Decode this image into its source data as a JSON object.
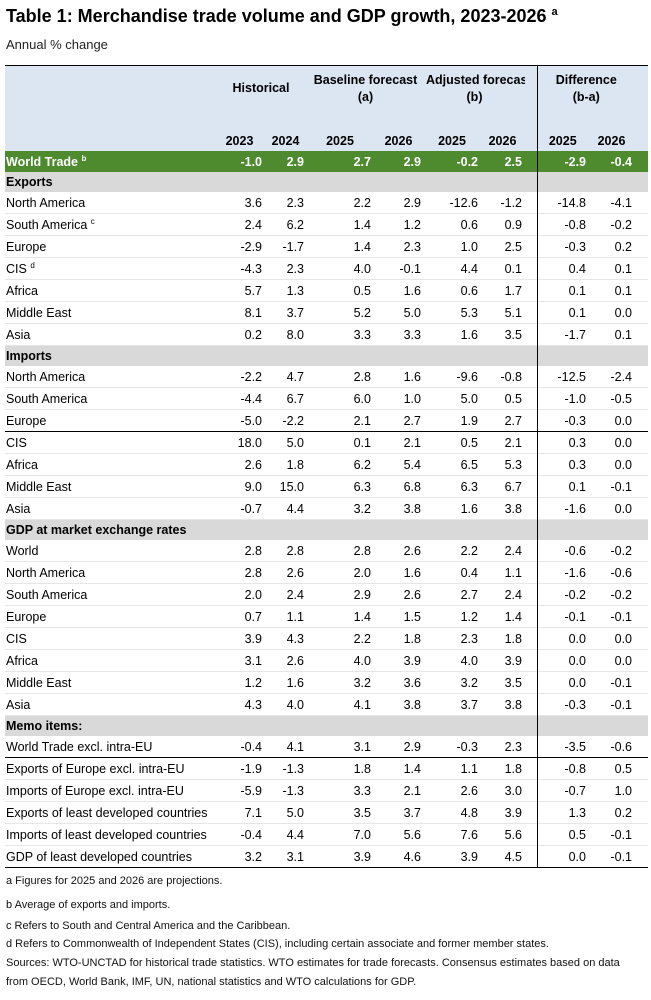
{
  "title": "Table 1: Merchandise trade volume and GDP growth, 2023-2026",
  "title_note": "a",
  "subtitle": "Annual % change",
  "column_groups": [
    {
      "label": "Historical"
    },
    {
      "label": "Baseline forecast",
      "sub": "(a)"
    },
    {
      "label": "Adjusted forecast",
      "sub": "(b)"
    },
    {
      "label": "Difference",
      "sub": "(b-a)"
    }
  ],
  "years": [
    "2023",
    "2024",
    "2025",
    "2026",
    "2025",
    "2026",
    "2025",
    "2026"
  ],
  "world_trade": {
    "label": "World Trade",
    "note": "b",
    "values": [
      "-1.0",
      "2.9",
      "2.7",
      "2.9",
      "-0.2",
      "2.5",
      "-2.9",
      "-0.4"
    ]
  },
  "sections": [
    {
      "title": "Exports",
      "rows": [
        {
          "label": "North America",
          "values": [
            "3.6",
            "2.3",
            "2.2",
            "2.9",
            "-12.6",
            "-1.2",
            "-14.8",
            "-4.1"
          ]
        },
        {
          "label": "South America",
          "note": "c",
          "values": [
            "2.4",
            "6.2",
            "1.4",
            "1.2",
            "0.6",
            "0.9",
            "-0.8",
            "-0.2"
          ]
        },
        {
          "label": "Europe",
          "values": [
            "-2.9",
            "-1.7",
            "1.4",
            "2.3",
            "1.0",
            "2.5",
            "-0.3",
            "0.2"
          ]
        },
        {
          "label": "CIS",
          "note": "d",
          "values": [
            "-4.3",
            "2.3",
            "4.0",
            "-0.1",
            "4.4",
            "0.1",
            "0.4",
            "0.1"
          ]
        },
        {
          "label": "Africa",
          "values": [
            "5.7",
            "1.3",
            "0.5",
            "1.6",
            "0.6",
            "1.7",
            "0.1",
            "0.1"
          ]
        },
        {
          "label": "Middle East",
          "values": [
            "8.1",
            "3.7",
            "5.2",
            "5.0",
            "5.3",
            "5.1",
            "0.1",
            "0.0"
          ]
        },
        {
          "label": "Asia",
          "values": [
            "0.2",
            "8.0",
            "3.3",
            "3.3",
            "1.6",
            "3.5",
            "-1.7",
            "0.1"
          ]
        }
      ]
    },
    {
      "title": "Imports",
      "rows": [
        {
          "label": "North America",
          "values": [
            "-2.2",
            "4.7",
            "2.8",
            "1.6",
            "-9.6",
            "-0.8",
            "-12.5",
            "-2.4"
          ]
        },
        {
          "label": "South America",
          "values": [
            "-4.4",
            "6.7",
            "6.0",
            "1.0",
            "5.0",
            "0.5",
            "-1.0",
            "-0.5"
          ]
        },
        {
          "label": "Europe",
          "values": [
            "-5.0",
            "-2.2",
            "2.1",
            "2.7",
            "1.9",
            "2.7",
            "-0.3",
            "0.0"
          ]
        },
        {
          "label": "CIS",
          "values": [
            "18.0",
            "5.0",
            "0.1",
            "2.1",
            "0.5",
            "2.1",
            "0.3",
            "0.0"
          ]
        },
        {
          "label": "Africa",
          "values": [
            "2.6",
            "1.8",
            "6.2",
            "5.4",
            "6.5",
            "5.3",
            "0.3",
            "0.0"
          ]
        },
        {
          "label": "Middle East",
          "values": [
            "9.0",
            "15.0",
            "6.3",
            "6.8",
            "6.3",
            "6.7",
            "0.1",
            "-0.1"
          ]
        },
        {
          "label": "Asia",
          "values": [
            "-0.7",
            "4.4",
            "3.2",
            "3.8",
            "1.6",
            "3.8",
            "-1.6",
            "0.0"
          ]
        }
      ]
    },
    {
      "title": "GDP at market exchange rates",
      "rows": [
        {
          "label": "World",
          "values": [
            "2.8",
            "2.8",
            "2.8",
            "2.6",
            "2.2",
            "2.4",
            "-0.6",
            "-0.2"
          ]
        },
        {
          "label": "North America",
          "values": [
            "2.8",
            "2.6",
            "2.0",
            "1.6",
            "0.4",
            "1.1",
            "-1.6",
            "-0.6"
          ]
        },
        {
          "label": "South America",
          "values": [
            "2.0",
            "2.4",
            "2.9",
            "2.6",
            "2.7",
            "2.4",
            "-0.2",
            "-0.2"
          ]
        },
        {
          "label": "Europe",
          "values": [
            "0.7",
            "1.1",
            "1.4",
            "1.5",
            "1.2",
            "1.4",
            "-0.1",
            "-0.1"
          ]
        },
        {
          "label": "CIS",
          "values": [
            "3.9",
            "4.3",
            "2.2",
            "1.8",
            "2.3",
            "1.8",
            "0.0",
            "0.0"
          ]
        },
        {
          "label": "Africa",
          "values": [
            "3.1",
            "2.6",
            "4.0",
            "3.9",
            "4.0",
            "3.9",
            "0.0",
            "0.0"
          ]
        },
        {
          "label": "Middle East",
          "values": [
            "1.2",
            "1.6",
            "3.2",
            "3.6",
            "3.2",
            "3.5",
            "0.0",
            "-0.1"
          ]
        },
        {
          "label": "Asia",
          "values": [
            "4.3",
            "4.0",
            "4.1",
            "3.8",
            "3.7",
            "3.8",
            "-0.3",
            "-0.1"
          ]
        }
      ]
    },
    {
      "title": "Memo items:",
      "rows": [
        {
          "label": "World Trade excl. intra-EU",
          "values": [
            "-0.4",
            "4.1",
            "3.1",
            "2.9",
            "-0.3",
            "2.3",
            "-3.5",
            "-0.6"
          ]
        },
        {
          "label": "Exports of Europe excl. intra-EU",
          "values": [
            "-1.9",
            "-1.3",
            "1.8",
            "1.4",
            "1.1",
            "1.8",
            "-0.8",
            "0.5"
          ]
        },
        {
          "label": "Imports of Europe excl. intra-EU",
          "values": [
            "-5.9",
            "-1.3",
            "3.3",
            "2.1",
            "2.6",
            "3.0",
            "-0.7",
            "1.0"
          ]
        },
        {
          "label": "Exports of least developed countries",
          "values": [
            "7.1",
            "5.0",
            "3.5",
            "3.7",
            "4.8",
            "3.9",
            "1.3",
            "0.2"
          ]
        },
        {
          "label": "Imports of least developed countries",
          "values": [
            "-0.4",
            "4.4",
            "7.0",
            "5.6",
            "7.6",
            "5.6",
            "0.5",
            "-0.1"
          ]
        },
        {
          "label": "GDP of least developed countries",
          "values": [
            "3.2",
            "3.1",
            "3.9",
            "4.6",
            "3.9",
            "4.5",
            "0.0",
            "-0.1"
          ]
        }
      ]
    }
  ],
  "footnotes": [
    "a Figures for 2025 and 2026 are projections.",
    "b Average of exports and imports.",
    "c Refers to South and Central America and the Caribbean.",
    "d Refers to Commonwealth of Independent States (CIS), including certain associate and former member states.",
    "Sources: WTO-UNCTAD for historical trade statistics. WTO estimates for trade forecasts.  Consensus estimates based on data from OECD, World Bank, IMF, UN, national statistics and WTO calculations for GDP."
  ]
}
